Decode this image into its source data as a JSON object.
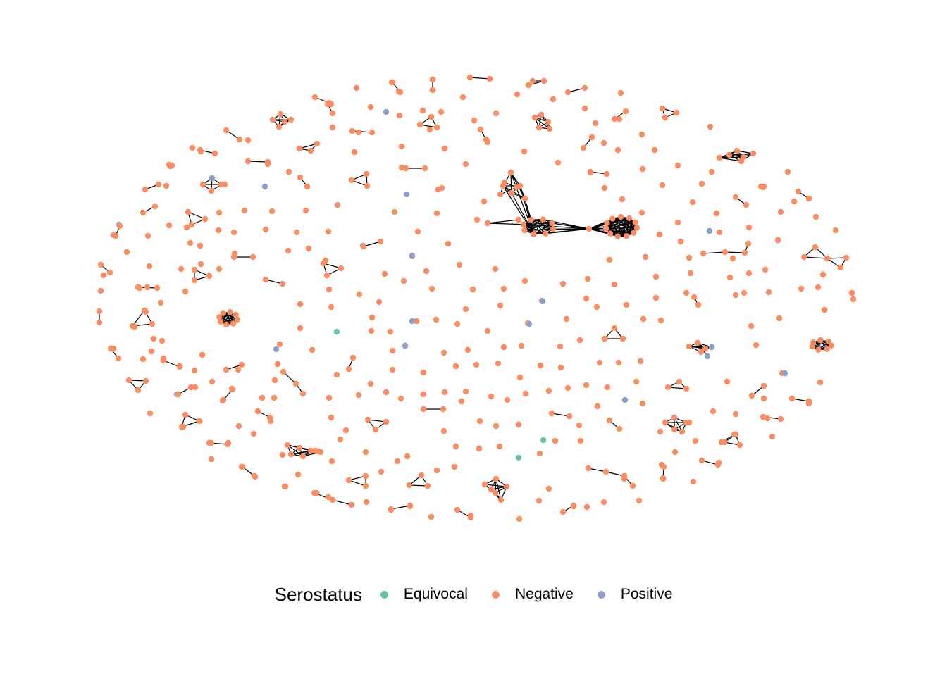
{
  "legend": {
    "title": "Serostatus",
    "items": [
      {
        "key": "equivocal",
        "label": "Equivocal",
        "color": "#66C2A5"
      },
      {
        "key": "negative",
        "label": "Negative",
        "color": "#FC8D62"
      },
      {
        "key": "positive",
        "label": "Positive",
        "color": "#8DA0CB"
      }
    ]
  },
  "edge_color": "#000000"
}
